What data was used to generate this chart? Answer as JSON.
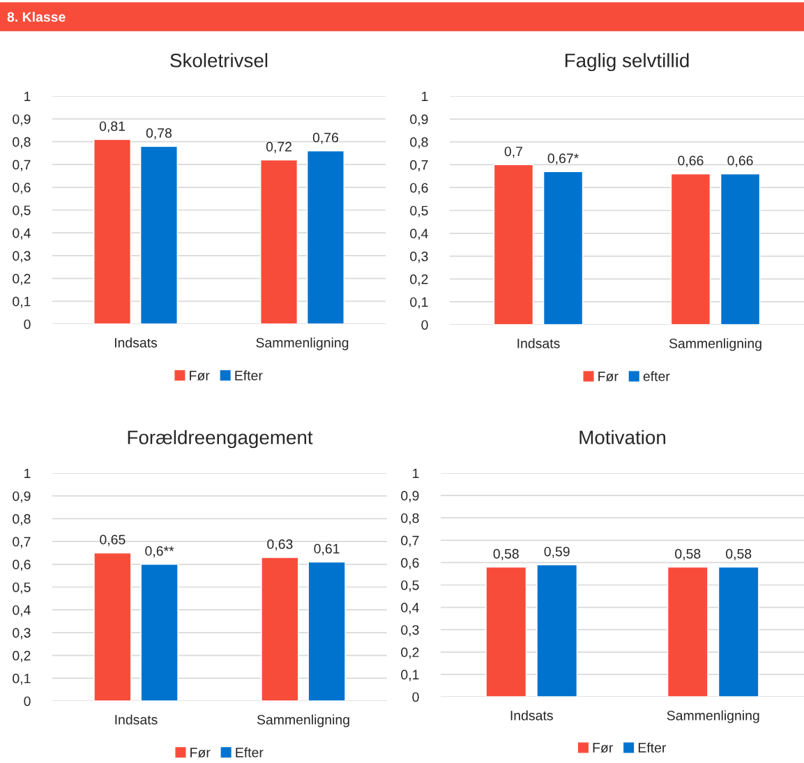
{
  "chart_data": [
    {
      "type": "bar",
      "title": "Skoletrivsel",
      "annotations": [
        "8. Klasse"
      ],
      "categories": [
        "Indsats",
        "Sammenligning"
      ],
      "series": [
        {
          "name": "Før",
          "color": "#f84c3b",
          "values": [
            0.81,
            0.72
          ],
          "value_labels": [
            "0,81",
            "0,72"
          ]
        },
        {
          "name": "Efter",
          "color": "#0073cf",
          "values": [
            0.78,
            0.76
          ],
          "value_labels": [
            "0,78",
            "0,76"
          ]
        }
      ],
      "ylim": [
        0,
        1
      ],
      "yticks": [
        0,
        {
          "value": 0.1,
          "label": "0,1"
        },
        {
          "value": 0.2,
          "label": "0,2"
        },
        {
          "value": 0.3,
          "label": "0,3"
        },
        {
          "value": 0.4,
          "label": "0,4"
        },
        {
          "value": 0.5,
          "label": "0,5"
        },
        {
          "value": 0.6,
          "label": "0,6"
        },
        {
          "value": 0.7,
          "label": "0,7"
        },
        {
          "value": 0.8,
          "label": "0,8"
        },
        {
          "value": 0.9,
          "label": "0,9"
        },
        1
      ],
      "grid": "y",
      "legend": "bottom"
    },
    {
      "type": "bar",
      "title": "Faglig selvtillid",
      "categories": [
        "Indsats",
        "Sammenligning"
      ],
      "series": [
        {
          "name": "Før",
          "color": "#f84c3b",
          "values": [
            0.7,
            0.66
          ],
          "value_labels": [
            "0,7",
            "0,66"
          ]
        },
        {
          "name": "efter",
          "color": "#0073cf",
          "values": [
            0.67,
            0.66
          ],
          "value_labels": [
            "0,67*",
            "0,66"
          ]
        }
      ],
      "ylim": [
        0,
        1
      ],
      "yticks": [
        0,
        {
          "value": 0.1,
          "label": "0,1"
        },
        {
          "value": 0.2,
          "label": "0,2"
        },
        {
          "value": 0.3,
          "label": "0,3"
        },
        {
          "value": 0.4,
          "label": "0,4"
        },
        {
          "value": 0.5,
          "label": "0,5"
        },
        {
          "value": 0.6,
          "label": "0,6"
        },
        {
          "value": 0.7,
          "label": "0,7"
        },
        {
          "value": 0.8,
          "label": "0,8"
        },
        {
          "value": 0.9,
          "label": "0,9"
        },
        1
      ],
      "grid": "y",
      "legend": "bottom"
    },
    {
      "type": "bar",
      "title": "Forældreengagement",
      "categories": [
        "Indsats",
        "Sammenligning"
      ],
      "series": [
        {
          "name": "Før",
          "color": "#f84c3b",
          "values": [
            0.65,
            0.63
          ],
          "value_labels": [
            "0,65",
            "0,63"
          ]
        },
        {
          "name": "Efter",
          "color": "#0073cf",
          "values": [
            0.6,
            0.61
          ],
          "value_labels": [
            "0,6**",
            "0,61"
          ]
        }
      ],
      "ylim": [
        0,
        1
      ],
      "yticks": [
        0,
        {
          "value": 0.1,
          "label": "0,1"
        },
        {
          "value": 0.2,
          "label": "0,2"
        },
        {
          "value": 0.3,
          "label": "0,3"
        },
        {
          "value": 0.4,
          "label": "0,4"
        },
        {
          "value": 0.5,
          "label": "0,5"
        },
        {
          "value": 0.6,
          "label": "0,6"
        },
        {
          "value": 0.7,
          "label": "0,7"
        },
        {
          "value": 0.8,
          "label": "0,8"
        },
        {
          "value": 0.9,
          "label": "0,9"
        },
        1
      ],
      "grid": "y",
      "legend": "bottom"
    },
    {
      "type": "bar",
      "title": "Motivation",
      "categories": [
        "Indsats",
        "Sammenligning"
      ],
      "series": [
        {
          "name": "Før",
          "color": "#f84c3b",
          "values": [
            0.58,
            0.58
          ],
          "value_labels": [
            "0,58",
            "0,58"
          ]
        },
        {
          "name": "Efter",
          "color": "#0073cf",
          "values": [
            0.59,
            0.58
          ],
          "value_labels": [
            "0,59",
            "0,58"
          ]
        }
      ],
      "ylim": [
        0,
        1
      ],
      "yticks": [
        0,
        {
          "value": 0.1,
          "label": "0,1"
        },
        {
          "value": 0.2,
          "label": "0,2"
        },
        {
          "value": 0.3,
          "label": "0,3"
        },
        {
          "value": 0.4,
          "label": "0,4"
        },
        {
          "value": 0.5,
          "label": "0,5"
        },
        {
          "value": 0.6,
          "label": "0,6"
        },
        {
          "value": 0.7,
          "label": "0,7"
        },
        {
          "value": 0.8,
          "label": "0,8"
        },
        {
          "value": 0.9,
          "label": "0,9"
        },
        1
      ],
      "grid": "y",
      "legend": "bottom"
    }
  ]
}
